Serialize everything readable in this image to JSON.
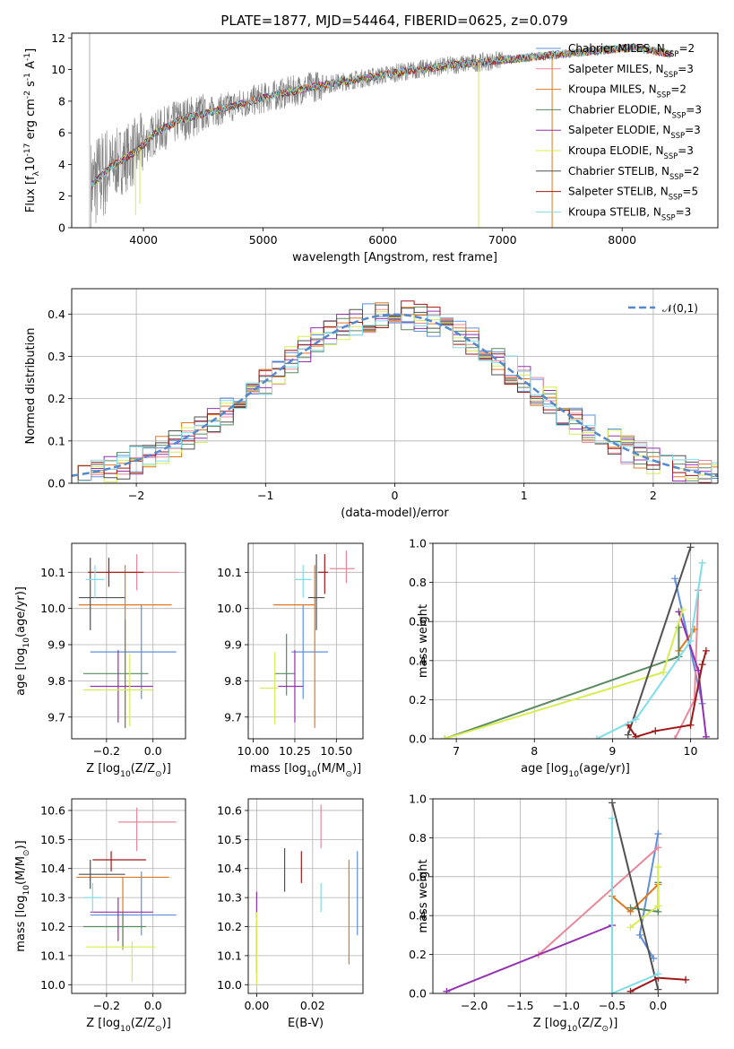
{
  "figure_title": "PLATE=1877, MJD=54464, FIBERID=0625, z=0.079",
  "series_names": [
    "Chabrier MILES, N$_{SSP}$=2",
    "Salpeter MILES, N$_{SSP}$=3",
    "Kroupa MILES, N$_{SSP}$=2",
    "Chabrier ELODIE, N$_{SSP}$=3",
    "Salpeter ELODIE, N$_{SSP}$=3",
    "Kroupa ELODIE, N$_{SSP}$=3",
    "Chabrier STELIB, N$_{SSP}$=2",
    "Salpeter STELIB, N$_{SSP}$=5",
    "Kroupa STELIB, N$_{SSP}$=3"
  ],
  "colors": [
    "#5f8fdf",
    "#e8889a",
    "#e07820",
    "#5a8a60",
    "#9530b0",
    "#d8ec50",
    "#505050",
    "#a01818",
    "#7fdde8"
  ],
  "chart_data": [
    {
      "id": "spectrum",
      "type": "line",
      "title": "PLATE=1877, MJD=54464, FIBERID=0625, z=0.079",
      "xlabel": "wavelength [Angstrom, rest frame]",
      "ylabel": "Flux [f$_\\lambda$10$^{-17}$ erg cm$^{-2}$ s$^{-1}$ A$^{-1}$]",
      "xlim": [
        3400,
        8800
      ],
      "ylim": [
        0,
        12.3
      ],
      "xticks": [
        4000,
        5000,
        6000,
        7000,
        8000
      ],
      "yticks": [
        0,
        2,
        4,
        6,
        8,
        10,
        12
      ],
      "grid": false,
      "legend_position": "right",
      "data_color": "#808080",
      "continuum_knots": {
        "x": [
          3550,
          3650,
          3750,
          3850,
          3950,
          4100,
          4300,
          4600,
          5000,
          5400,
          5800,
          6200,
          6600,
          7000,
          7400,
          7800,
          8100,
          8400
        ],
        "y": [
          2.6,
          3.3,
          4.0,
          4.4,
          4.9,
          6.0,
          6.8,
          7.4,
          8.2,
          8.9,
          9.4,
          9.9,
          10.3,
          10.6,
          10.9,
          11.2,
          11.4,
          11.0
        ]
      },
      "dips": [
        {
          "x": 3934,
          "y": 0.8
        },
        {
          "x": 3969,
          "y": 1.5
        },
        {
          "x": 6800,
          "y": 0
        },
        {
          "x": 7415,
          "y": 0
        }
      ]
    },
    {
      "id": "residuals",
      "type": "histogram",
      "xlabel": "(data-model)/error",
      "ylabel": "Normed distribution",
      "xlim": [
        -2.5,
        2.5
      ],
      "ylim": [
        0,
        0.46
      ],
      "xticks": [
        -2,
        -1,
        0,
        1,
        2
      ],
      "yticks": [
        0.0,
        0.1,
        0.2,
        0.3,
        0.4
      ],
      "grid": true,
      "reference_curve": {
        "name": "$\\mathcal{N}(0,1)$",
        "mean": 0,
        "sigma": 1,
        "color": "#5588cc"
      },
      "legend_position": "top-right"
    },
    {
      "id": "age-vs-Z",
      "type": "errorbar",
      "xlabel": "Z [log$_{10}$(Z/Z$_\\odot$)]",
      "ylabel": "age  [log$_{10}$(age/yr)]",
      "xlim": [
        -0.35,
        0.14
      ],
      "ylim": [
        9.64,
        10.18
      ],
      "xticks": [
        -0.2,
        0.0
      ],
      "yticks": [
        9.7,
        9.8,
        9.9,
        10.0,
        10.1
      ],
      "grid": true,
      "points": [
        {
          "x": -0.05,
          "y": 9.88,
          "xerr": [
            0.22,
            0.15
          ],
          "yerr": [
            0.13,
            0.13
          ]
        },
        {
          "x": -0.07,
          "y": 10.1,
          "xerr": [
            0.13,
            0.18
          ],
          "yerr": [
            0.05,
            0.05
          ]
        },
        {
          "x": -0.12,
          "y": 10.01,
          "xerr": [
            0.2,
            0.2
          ],
          "yerr": [
            0.34,
            0.11
          ]
        },
        {
          "x": -0.12,
          "y": 9.82,
          "xerr": [
            0.18,
            0.1
          ],
          "yerr": [
            0.15,
            0.15
          ]
        },
        {
          "x": -0.15,
          "y": 9.785,
          "xerr": [
            0.12,
            0.15
          ],
          "yerr": [
            0.1,
            0.1
          ]
        },
        {
          "x": -0.1,
          "y": 9.775,
          "xerr": [
            0.2,
            0.1
          ],
          "yerr": [
            0.1,
            0.1
          ]
        },
        {
          "x": -0.27,
          "y": 10.03,
          "xerr": [
            0.05,
            0.15
          ],
          "yerr": [
            0.09,
            0.11
          ]
        },
        {
          "x": -0.19,
          "y": 10.1,
          "xerr": [
            0.09,
            0.15
          ],
          "yerr": [
            0.04,
            0.04
          ]
        },
        {
          "x": -0.25,
          "y": 10.08,
          "xerr": [
            0.04,
            0.04
          ],
          "yerr": [
            0.05,
            0.04
          ]
        }
      ]
    },
    {
      "id": "age-vs-mass",
      "type": "errorbar",
      "xlabel": "mass [log$_{10}$(M/M$_\\odot$)]",
      "ylabel": "",
      "xlim": [
        9.97,
        10.66
      ],
      "ylim": [
        9.64,
        10.18
      ],
      "xticks": [
        10.0,
        10.25,
        10.5
      ],
      "yticks": [
        9.7,
        9.8,
        9.9,
        10.0,
        10.1
      ],
      "grid": true,
      "points": [
        {
          "x": 10.3,
          "y": 9.88,
          "xerr": [
            0.07,
            0.15
          ],
          "yerr": [
            0.13,
            0.13
          ]
        },
        {
          "x": 10.56,
          "y": 10.11,
          "xerr": [
            0.1,
            0.05
          ],
          "yerr": [
            0.04,
            0.05
          ]
        },
        {
          "x": 10.37,
          "y": 10.01,
          "xerr": [
            0.25,
            0.0
          ],
          "yerr": [
            0.34,
            0.11
          ]
        },
        {
          "x": 10.2,
          "y": 9.82,
          "xerr": [
            0.07,
            0.05
          ],
          "yerr": [
            0.06,
            0.11
          ]
        },
        {
          "x": 10.25,
          "y": 9.785,
          "xerr": [
            0.1,
            0.05
          ],
          "yerr": [
            0.1,
            0.1
          ]
        },
        {
          "x": 10.13,
          "y": 9.78,
          "xerr": [
            0.09,
            0.02
          ],
          "yerr": [
            0.1,
            0.1
          ]
        },
        {
          "x": 10.38,
          "y": 10.03,
          "xerr": [
            0.05,
            0.05
          ],
          "yerr": [
            0.09,
            0.12
          ]
        },
        {
          "x": 10.43,
          "y": 10.1,
          "xerr": [
            0.04,
            0.02
          ],
          "yerr": [
            0.06,
            0.05
          ]
        },
        {
          "x": 10.3,
          "y": 10.08,
          "xerr": [
            0.05,
            0.05
          ],
          "yerr": [
            0.05,
            0.04
          ]
        }
      ]
    },
    {
      "id": "mass-weight-vs-age",
      "type": "line",
      "xlabel": "age  [log$_{10}$(age/yr)]",
      "ylabel": "mass weight",
      "xlim": [
        6.7,
        10.35
      ],
      "ylim": [
        0,
        1
      ],
      "xticks": [
        7,
        8,
        9,
        10
      ],
      "yticks": [
        0.0,
        0.2,
        0.4,
        0.6,
        0.8,
        1.0
      ],
      "grid": true,
      "series": [
        {
          "x": [
            9.8,
            10.15
          ],
          "y": [
            0.82,
            0.18
          ]
        },
        {
          "x": [
            9.8,
            10.05,
            10.1
          ],
          "y": [
            0.0,
            0.2,
            0.76
          ]
        },
        {
          "x": [
            9.85,
            10.05
          ],
          "y": [
            0.45,
            0.56
          ]
        },
        {
          "x": [
            6.85,
            9.85,
            9.85
          ],
          "y": [
            0.0,
            0.42,
            0.57
          ]
        },
        {
          "x": [
            9.85,
            10.1,
            10.2
          ],
          "y": [
            0.65,
            0.35,
            0.01
          ]
        },
        {
          "x": [
            6.85,
            9.65,
            9.9
          ],
          "y": [
            0.0,
            0.34,
            0.66
          ]
        },
        {
          "x": [
            9.2,
            10.0
          ],
          "y": [
            0.02,
            0.98
          ]
        },
        {
          "x": [
            9.2,
            9.3,
            9.55,
            10.0,
            10.15,
            10.2
          ],
          "y": [
            0.07,
            0.01,
            0.04,
            0.07,
            0.38,
            0.45
          ]
        },
        {
          "x": [
            8.8,
            9.3,
            10.0,
            10.15
          ],
          "y": [
            0.0,
            0.1,
            0.5,
            0.9
          ]
        }
      ]
    },
    {
      "id": "mass-vs-Z",
      "type": "errorbar",
      "xlabel": "Z [log$_{10}$(Z/Z$_\\odot$)]",
      "ylabel": "mass [log$_{10}$(M/M$_\\odot$)]",
      "xlim": [
        -0.35,
        0.14
      ],
      "ylim": [
        9.97,
        10.64
      ],
      "xticks": [
        -0.2,
        0.0
      ],
      "yticks": [
        10.0,
        10.1,
        10.2,
        10.3,
        10.4,
        10.5,
        10.6
      ],
      "grid": true,
      "points": [
        {
          "x": -0.05,
          "y": 10.24,
          "xerr": [
            0.22,
            0.15
          ],
          "yerr": [
            0.07,
            0.15
          ]
        },
        {
          "x": -0.07,
          "y": 10.56,
          "xerr": [
            0.08,
            0.17
          ],
          "yerr": [
            0.1,
            0.05
          ]
        },
        {
          "x": -0.13,
          "y": 10.37,
          "xerr": [
            0.2,
            0.2
          ],
          "yerr": [
            0.25,
            0.0
          ]
        },
        {
          "x": -0.13,
          "y": 10.2,
          "xerr": [
            0.17,
            0.1
          ],
          "yerr": [
            0.07,
            0.05
          ]
        },
        {
          "x": -0.15,
          "y": 10.25,
          "xerr": [
            0.12,
            0.15
          ],
          "yerr": [
            0.1,
            0.05
          ]
        },
        {
          "x": -0.09,
          "y": 10.13,
          "xerr": [
            0.2,
            0.1
          ],
          "yerr": [
            0.12,
            0.02
          ]
        },
        {
          "x": -0.27,
          "y": 10.38,
          "xerr": [
            0.05,
            0.15
          ],
          "yerr": [
            0.05,
            0.05
          ]
        },
        {
          "x": -0.18,
          "y": 10.43,
          "xerr": [
            0.08,
            0.15
          ],
          "yerr": [
            0.04,
            0.03
          ]
        },
        {
          "x": -0.26,
          "y": 10.3,
          "xerr": [
            0.04,
            0.04
          ],
          "yerr": [
            0.05,
            0.05
          ]
        }
      ]
    },
    {
      "id": "mass-vs-ebv",
      "type": "errorbar",
      "xlabel": "E(B-V)",
      "ylabel": "",
      "xlim": [
        -0.003,
        0.038
      ],
      "ylim": [
        9.97,
        10.64
      ],
      "xticks": [
        0.0,
        0.02
      ],
      "yticks": [
        10.0,
        10.1,
        10.2,
        10.3,
        10.4,
        10.5,
        10.6
      ],
      "grid": true,
      "points": [
        {
          "x": 0.036,
          "y": 10.32,
          "xerr": [
            0,
            0
          ],
          "yerr": [
            0.15,
            0.14
          ]
        },
        {
          "x": 0.023,
          "y": 10.56,
          "xerr": [
            0,
            0
          ],
          "yerr": [
            0.09,
            0.06
          ]
        },
        {
          "x": 0.033,
          "y": 10.25,
          "xerr": [
            0,
            0
          ],
          "yerr": [
            0.18,
            0.18
          ]
        },
        {
          "x": 0.0,
          "y": 10.1,
          "xerr": [
            0,
            0
          ],
          "yerr": [
            0.06,
            0.12
          ]
        },
        {
          "x": 0.0,
          "y": 10.29,
          "xerr": [
            0,
            0
          ],
          "yerr": [
            0.06,
            0.03
          ]
        },
        {
          "x": 0.0,
          "y": 10.13,
          "xerr": [
            0,
            0
          ],
          "yerr": [
            0.13,
            0.12
          ]
        },
        {
          "x": 0.01,
          "y": 10.4,
          "xerr": [
            0,
            0
          ],
          "yerr": [
            0.08,
            0.07
          ]
        },
        {
          "x": 0.016,
          "y": 10.41,
          "xerr": [
            0,
            0
          ],
          "yerr": [
            0.06,
            0.05
          ]
        },
        {
          "x": 0.023,
          "y": 10.3,
          "xerr": [
            0,
            0
          ],
          "yerr": [
            0.05,
            0.05
          ]
        }
      ]
    },
    {
      "id": "mass-weight-vs-Z",
      "type": "line",
      "xlabel": "Z [log$_{10}$(Z/Z$_\\odot$)]",
      "ylabel": "mass weight",
      "xlim": [
        -2.45,
        0.65
      ],
      "ylim": [
        0,
        1
      ],
      "xticks": [
        -2.0,
        -1.5,
        -1.0,
        -0.5,
        0.0
      ],
      "yticks": [
        0.0,
        0.2,
        0.4,
        0.6,
        0.8,
        1.0
      ],
      "grid": true,
      "series": [
        {
          "x": [
            0.0,
            -0.2,
            -0.05
          ],
          "y": [
            0.82,
            0.3,
            0.18
          ]
        },
        {
          "x": [
            -1.3,
            0.0
          ],
          "y": [
            0.2,
            0.75
          ]
        },
        {
          "x": [
            -0.5,
            -0.3,
            0.0
          ],
          "y": [
            0.5,
            0.42,
            0.56
          ]
        },
        {
          "x": [
            -0.3,
            0.0,
            0.0
          ],
          "y": [
            0.44,
            0.42,
            0.57
          ]
        },
        {
          "x": [
            -2.3,
            -0.5
          ],
          "y": [
            0.01,
            0.35
          ]
        },
        {
          "x": [
            0.0,
            0.0,
            -0.3
          ],
          "y": [
            0.65,
            0.45,
            0.34
          ]
        },
        {
          "x": [
            -0.5,
            0.0
          ],
          "y": [
            0.98,
            0.02
          ]
        },
        {
          "x": [
            -0.3,
            0.0,
            0.3
          ],
          "y": [
            0.01,
            0.08,
            0.07
          ]
        },
        {
          "x": [
            -0.5,
            -0.5,
            0.0
          ],
          "y": [
            0.9,
            0.0,
            0.1
          ]
        }
      ]
    }
  ]
}
